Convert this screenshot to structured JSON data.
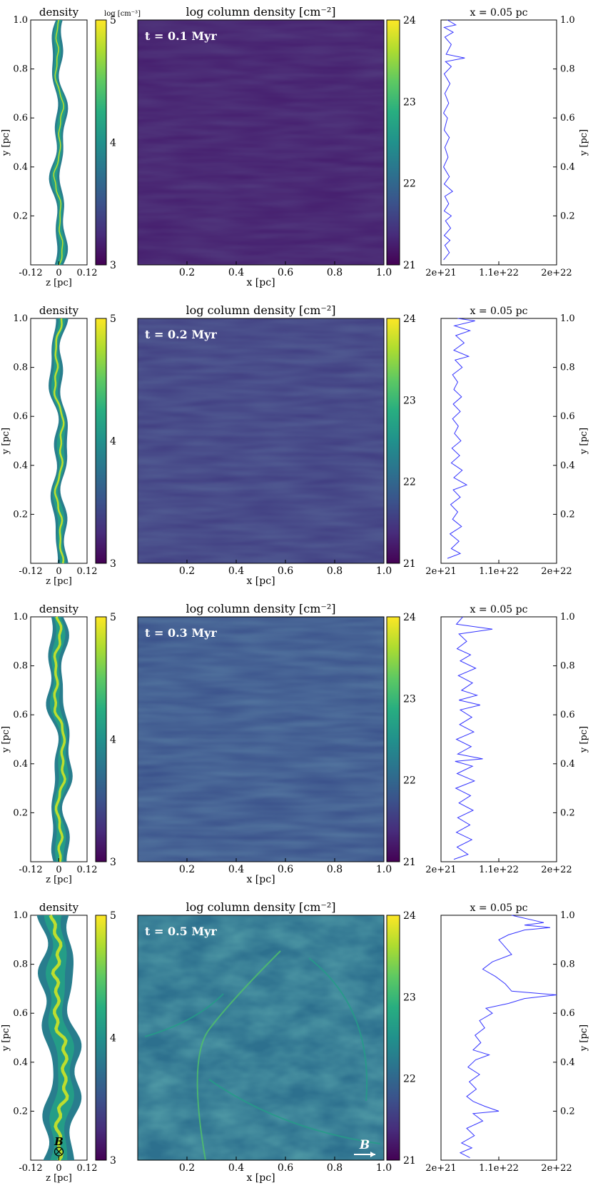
{
  "chart_data": {
    "type": "figure-grid",
    "colormap": "viridis",
    "colormap_stops": [
      "#440154",
      "#472d7b",
      "#3b528b",
      "#2c728e",
      "#21918c",
      "#28ae80",
      "#5ec962",
      "#addc30",
      "#fde725"
    ],
    "profile_color": "#3333ff",
    "row_order": [
      "t = 0.1 Myr",
      "t = 0.2 Myr",
      "t = 0.3 Myr",
      "t = 0.5 Myr"
    ],
    "density_panel": {
      "title": "density",
      "xlabel": "z [pc]",
      "ylabel": "y [pc]",
      "xticks": [
        "-0.12",
        "0",
        "0.12"
      ],
      "yticks": [
        "0.2",
        "0.4",
        "0.6",
        "0.8",
        "1.0"
      ],
      "colorbar_label": "log [cm⁻³]",
      "colorbar_ticks": [
        "3",
        "4",
        "5"
      ],
      "colorbar_range": [
        3,
        5
      ]
    },
    "column_panel": {
      "title": "log column density [cm⁻²]",
      "xlabel": "x [pc]",
      "xticks": [
        "0.2",
        "0.4",
        "0.6",
        "0.8",
        "1.0"
      ],
      "xrange": [
        0,
        1
      ],
      "colorbar_ticks": [
        "21",
        "22",
        "23",
        "24"
      ],
      "colorbar_range": [
        21,
        24
      ]
    },
    "profile_panel": {
      "title": "x = 0.05 pc",
      "ylabel": "y [pc]",
      "xticks": [
        "2e+21",
        "1.1e+22",
        "2e+22"
      ],
      "xrange": [
        2e+21,
        2e+22
      ],
      "yticks": [
        "0.2",
        "0.4",
        "0.6",
        "0.8",
        "1.0"
      ],
      "yrange": [
        0,
        1
      ]
    },
    "rows": [
      {
        "time_label": "t = 0.1 Myr",
        "filament_halfwidth_pc": 0.018,
        "column_mean_log": 21.25,
        "profile": {
          "y": [
            0.02,
            0.05,
            0.08,
            0.1,
            0.12,
            0.15,
            0.18,
            0.2,
            0.22,
            0.25,
            0.28,
            0.3,
            0.33,
            0.36,
            0.4,
            0.44,
            0.48,
            0.52,
            0.55,
            0.6,
            0.62,
            0.66,
            0.7,
            0.74,
            0.78,
            0.81,
            0.83,
            0.845,
            0.86,
            0.9,
            0.93,
            0.95,
            0.97,
            0.98,
            1.0
          ],
          "x": [
            2.4e+21,
            3.3e+21,
            2.6e+21,
            3.4e+21,
            2.5e+21,
            3.5e+21,
            2.7e+21,
            3.6e+21,
            2.5e+21,
            3.2e+21,
            2.6e+21,
            3.8e+21,
            2.5e+21,
            3.3e+21,
            2.4e+21,
            3.1e+21,
            2.6e+21,
            3.3e+21,
            2.5e+21,
            3e+21,
            2.4e+21,
            3.2e+21,
            2.6e+21,
            3.4e+21,
            2.5e+21,
            3.6e+21,
            2.7e+21,
            5.7e+21,
            2.8e+21,
            3.6e+21,
            2.6e+21,
            3.9e+21,
            2.5e+21,
            4.3e+21,
            3e+21
          ]
        }
      },
      {
        "time_label": "t = 0.2 Myr",
        "filament_halfwidth_pc": 0.022,
        "column_mean_log": 21.55,
        "profile": {
          "y": [
            0.02,
            0.04,
            0.06,
            0.09,
            0.12,
            0.15,
            0.18,
            0.21,
            0.24,
            0.27,
            0.3,
            0.32,
            0.35,
            0.38,
            0.41,
            0.44,
            0.47,
            0.5,
            0.53,
            0.56,
            0.59,
            0.62,
            0.65,
            0.68,
            0.71,
            0.74,
            0.77,
            0.8,
            0.83,
            0.845,
            0.87,
            0.9,
            0.93,
            0.95,
            0.97,
            0.99,
            1.0
          ],
          "x": [
            3e+21,
            5e+21,
            3.6e+21,
            4.8e+21,
            3.4e+21,
            5.2e+21,
            3.8e+21,
            4.6e+21,
            3.5e+21,
            5e+21,
            3.9e+21,
            6e+21,
            4e+21,
            5.3e+21,
            3.6e+21,
            4.9e+21,
            3.7e+21,
            5.1e+21,
            4.1e+21,
            4.7e+21,
            3.8e+21,
            5e+21,
            3.9e+21,
            5.2e+21,
            4e+21,
            4.6e+21,
            3.8e+21,
            5.3e+21,
            4.2e+21,
            6.3e+21,
            4e+21,
            5.6e+21,
            4.3e+21,
            6.5e+21,
            4.1e+21,
            7.3e+21,
            4.6e+21
          ]
        }
      },
      {
        "time_label": "t = 0.3 Myr",
        "filament_halfwidth_pc": 0.03,
        "column_mean_log": 21.75,
        "profile": {
          "y": [
            0.01,
            0.03,
            0.06,
            0.09,
            0.12,
            0.15,
            0.18,
            0.21,
            0.24,
            0.27,
            0.3,
            0.33,
            0.36,
            0.39,
            0.41,
            0.42,
            0.44,
            0.47,
            0.5,
            0.53,
            0.56,
            0.59,
            0.62,
            0.64,
            0.66,
            0.68,
            0.7,
            0.73,
            0.76,
            0.79,
            0.82,
            0.845,
            0.87,
            0.9,
            0.93,
            0.95,
            0.97,
            1.0
          ],
          "x": [
            4e+21,
            6.2e+21,
            4.5e+21,
            6.8e+21,
            4.4e+21,
            6.5e+21,
            4.6e+21,
            7e+21,
            4.8e+21,
            6.6e+21,
            4.3e+21,
            7.2e+21,
            4.5e+21,
            6.9e+21,
            4.2e+21,
            8.5e+21,
            4.6e+21,
            6.7e+21,
            4.4e+21,
            7.1e+21,
            4.9e+21,
            6.8e+21,
            5e+21,
            8.1e+21,
            4.8e+21,
            7.6e+21,
            5.2e+21,
            6.9e+21,
            4.7e+21,
            7.4e+21,
            5e+21,
            6.6e+21,
            4.5e+21,
            6e+21,
            4.8e+21,
            1e+22,
            4.4e+21,
            5.4e+21
          ]
        }
      },
      {
        "time_label": "t = 0.5 Myr",
        "filament_halfwidth_pc": 0.06,
        "column_mean_log": 22.1,
        "field_label": "B",
        "profile": {
          "y": [
            0.01,
            0.03,
            0.05,
            0.07,
            0.1,
            0.13,
            0.16,
            0.19,
            0.2,
            0.22,
            0.24,
            0.26,
            0.29,
            0.32,
            0.35,
            0.38,
            0.41,
            0.43,
            0.45,
            0.48,
            0.51,
            0.54,
            0.57,
            0.6,
            0.62,
            0.64,
            0.66,
            0.675,
            0.69,
            0.72,
            0.75,
            0.78,
            0.81,
            0.84,
            0.87,
            0.9,
            0.92,
            0.94,
            0.95,
            0.96,
            0.97,
            1.0
          ],
          "x": [
            6.5e+21,
            5e+21,
            6.8e+21,
            5.2e+21,
            7.2e+21,
            6e+21,
            8.5e+21,
            7e+21,
            1.1e+22,
            8.8e+21,
            7e+21,
            6e+21,
            7.5e+21,
            6.4e+21,
            8e+21,
            6.2e+21,
            7.4e+21,
            9.5e+21,
            7e+21,
            8.2e+21,
            7.3e+21,
            8.8e+21,
            8e+21,
            1e+22,
            9e+21,
            1.25e+22,
            1.5e+22,
            2e+22,
            1.3e+22,
            1.2e+22,
            1.05e+22,
            8.5e+21,
            1e+22,
            1.3e+22,
            1.2e+22,
            1.1e+22,
            1.25e+22,
            1.5e+22,
            1.9e+22,
            1.5e+22,
            1.8e+22,
            1.3e+22
          ]
        }
      }
    ]
  }
}
